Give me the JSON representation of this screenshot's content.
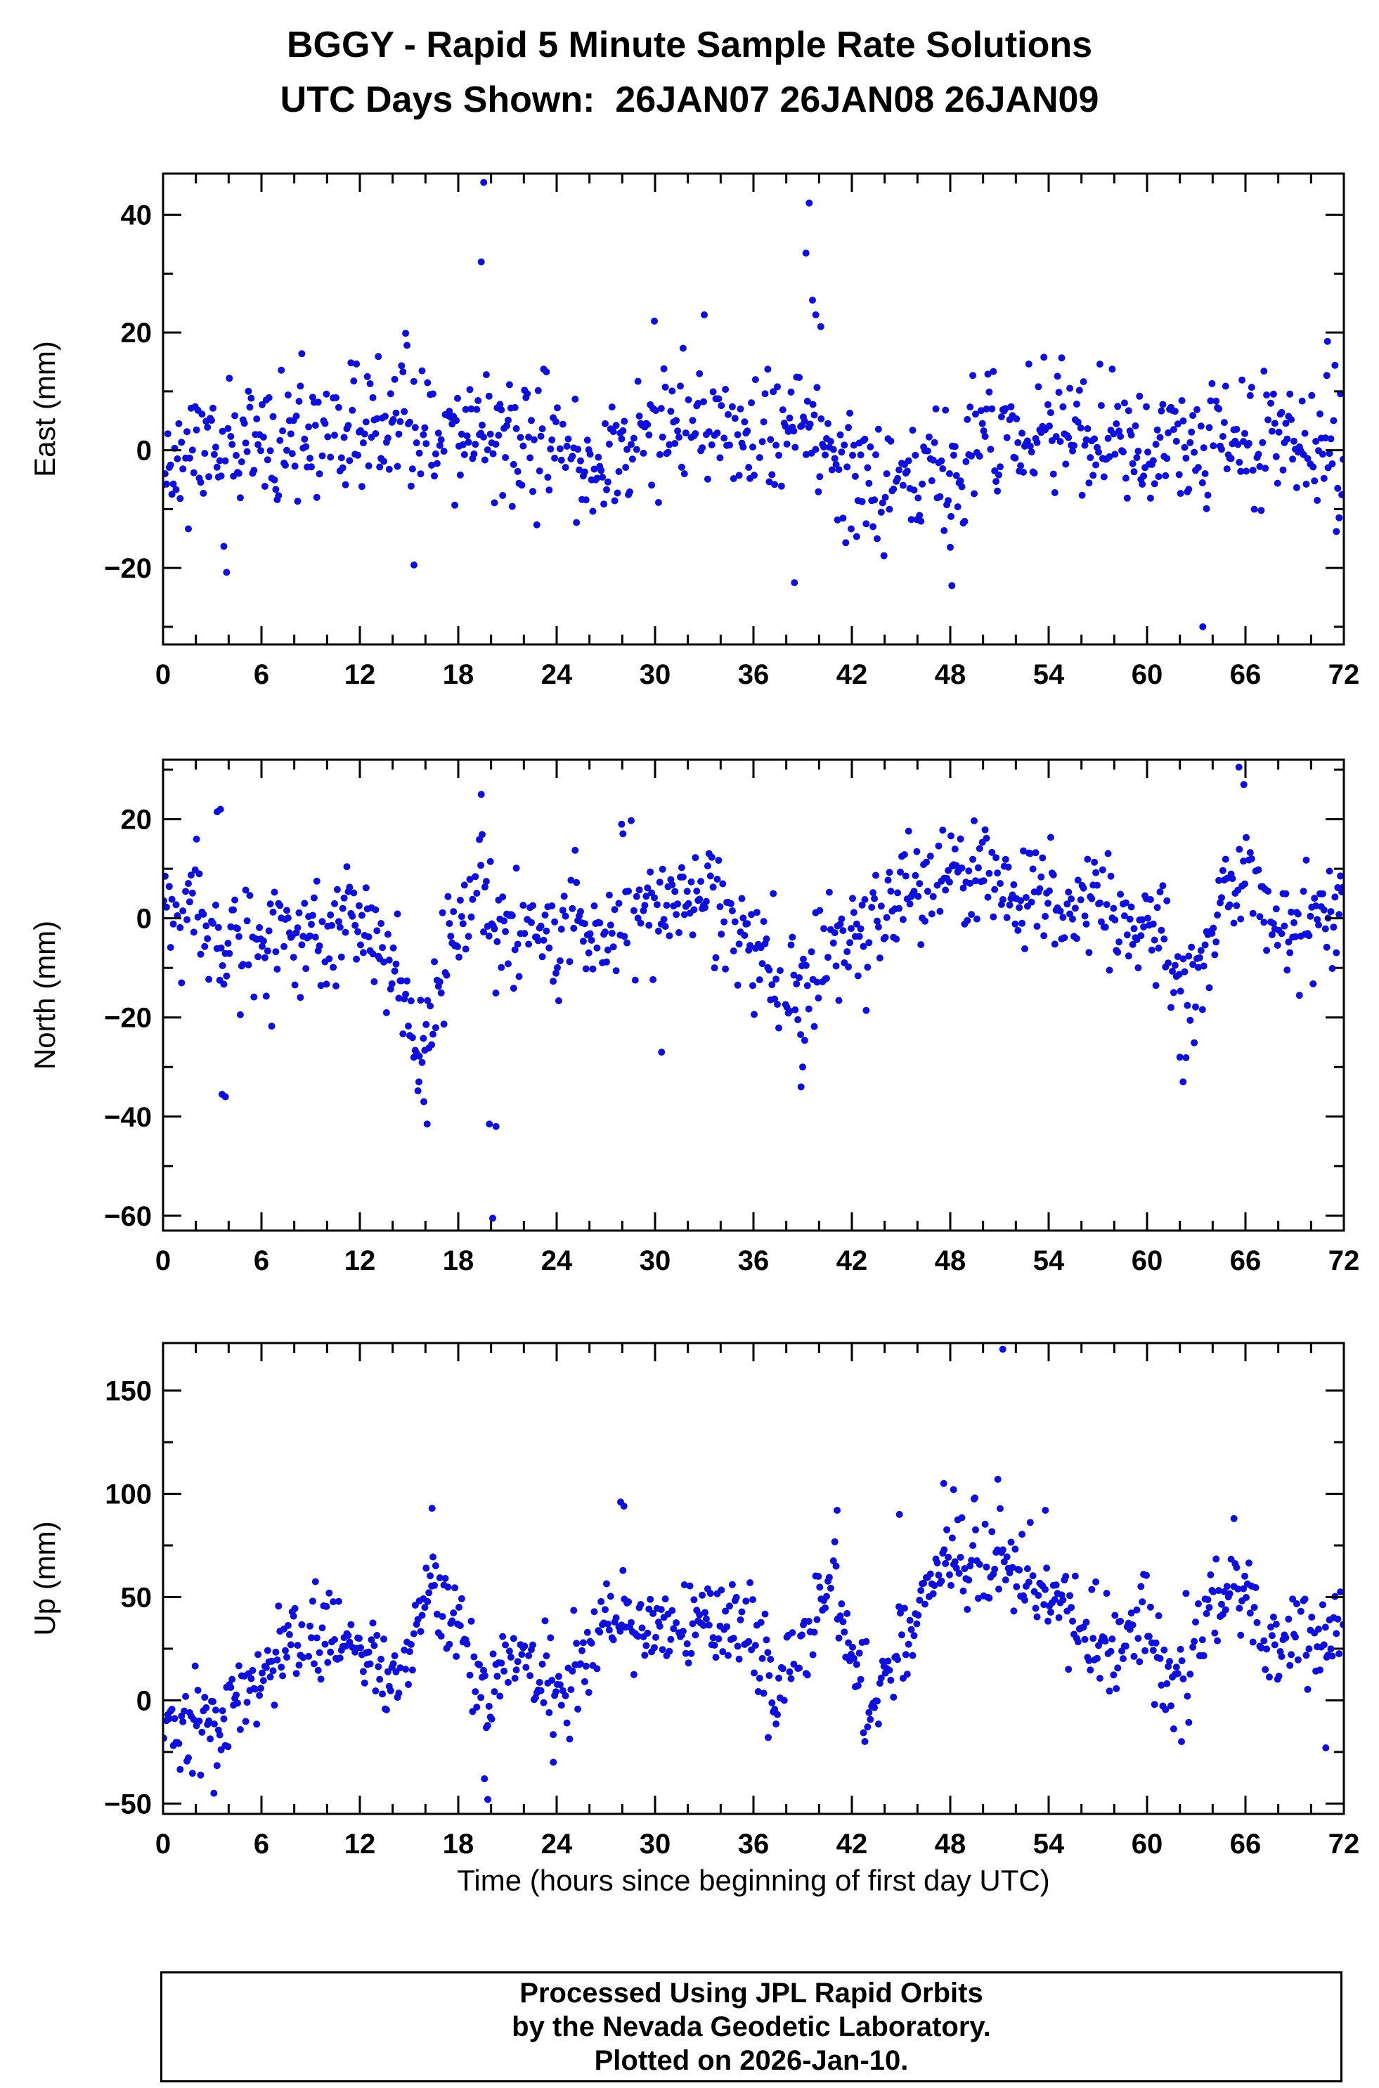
{
  "page": {
    "title": "BGGY - Rapid 5 Minute Sample Rate Solutions",
    "subtitle": "UTC Days Shown:  26JAN07 26JAN08 26JAN09",
    "footer_lines": [
      "Processed Using JPL Rapid Orbits",
      "by the Nevada Geodetic Laboratory.",
      "Plotted on 2026-Jan-10."
    ]
  },
  "style": {
    "point_color": "#0f0fdc",
    "frame_color": "#000000",
    "text_color": "#000000",
    "background": "#ffffff"
  },
  "chart_data": [
    {
      "type": "scatter",
      "ylabel": "East (mm)",
      "xlabel": "",
      "xlim": [
        0,
        72
      ],
      "xticks": [
        0,
        6,
        12,
        18,
        24,
        30,
        36,
        42,
        48,
        54,
        60,
        66,
        72
      ],
      "xtick_minor_step": 2,
      "ylim": [
        -33,
        47
      ],
      "yticks_major": [
        -20,
        0,
        20,
        40
      ],
      "ytick_minor_step": 10,
      "grid": false,
      "legend": false,
      "sample": {
        "n": 864,
        "seed": 11,
        "sigma": 5.5,
        "gap_prob": 0.05,
        "mean_curve": [
          [
            0,
            -1
          ],
          [
            3,
            0
          ],
          [
            6,
            0
          ],
          [
            9,
            2
          ],
          [
            12,
            3
          ],
          [
            15,
            4
          ],
          [
            16,
            5
          ],
          [
            18,
            3
          ],
          [
            20,
            3
          ],
          [
            22,
            1
          ],
          [
            24,
            1
          ],
          [
            26,
            -2
          ],
          [
            28,
            0
          ],
          [
            30,
            3
          ],
          [
            32,
            5
          ],
          [
            33,
            6
          ],
          [
            34,
            3
          ],
          [
            36,
            1
          ],
          [
            38,
            2
          ],
          [
            39,
            5
          ],
          [
            40,
            1
          ],
          [
            41,
            -2
          ],
          [
            42,
            -4
          ],
          [
            44,
            -4
          ],
          [
            46,
            -5
          ],
          [
            48,
            -3
          ],
          [
            50,
            2
          ],
          [
            52,
            3
          ],
          [
            54,
            6
          ],
          [
            55,
            5
          ],
          [
            56,
            2
          ],
          [
            58,
            2
          ],
          [
            60,
            0
          ],
          [
            62,
            0
          ],
          [
            64,
            1
          ],
          [
            66,
            3
          ],
          [
            68,
            2
          ],
          [
            70,
            1
          ],
          [
            72,
            3
          ]
        ]
      },
      "outliers": [
        [
          19.55,
          45.5
        ],
        [
          19.4,
          32
        ],
        [
          39.4,
          42
        ],
        [
          39.2,
          33.5
        ],
        [
          39.6,
          25.5
        ],
        [
          39.8,
          23
        ],
        [
          40.1,
          21
        ],
        [
          33.0,
          23
        ],
        [
          15.3,
          -19.5
        ],
        [
          38.5,
          -22.5
        ],
        [
          48.1,
          -23
        ],
        [
          48.0,
          -16.5
        ],
        [
          63.4,
          -30
        ],
        [
          71.0,
          18.5
        ]
      ]
    },
    {
      "type": "scatter",
      "ylabel": "North (mm)",
      "xlabel": "",
      "xlim": [
        0,
        72
      ],
      "xticks": [
        0,
        6,
        12,
        18,
        24,
        30,
        36,
        42,
        48,
        54,
        60,
        66,
        72
      ],
      "xtick_minor_step": 2,
      "ylim": [
        -63,
        32
      ],
      "yticks_major": [
        -60,
        -40,
        -20,
        0,
        20
      ],
      "ytick_minor_step": 10,
      "grid": false,
      "legend": false,
      "sample": {
        "n": 864,
        "seed": 22,
        "sigma": 5.5,
        "gap_prob": 0.05,
        "mean_curve": [
          [
            0,
            2
          ],
          [
            1,
            4
          ],
          [
            2,
            5
          ],
          [
            3,
            -2
          ],
          [
            4,
            -7
          ],
          [
            5,
            -5
          ],
          [
            6,
            -4
          ],
          [
            7,
            -3
          ],
          [
            8,
            -5
          ],
          [
            9,
            -3
          ],
          [
            10,
            -4
          ],
          [
            11,
            -2
          ],
          [
            12,
            -3
          ],
          [
            13,
            -5
          ],
          [
            14,
            -12
          ],
          [
            15,
            -18
          ],
          [
            15.7,
            -24
          ],
          [
            16.3,
            -20
          ],
          [
            17,
            -10
          ],
          [
            18,
            0
          ],
          [
            18.8,
            6
          ],
          [
            19.5,
            8
          ],
          [
            20.2,
            -4
          ],
          [
            21,
            -2
          ],
          [
            22,
            0
          ],
          [
            23,
            -2
          ],
          [
            24,
            -3
          ],
          [
            25,
            -2
          ],
          [
            26,
            -3
          ],
          [
            27,
            -1
          ],
          [
            28,
            1
          ],
          [
            29,
            0
          ],
          [
            30,
            2
          ],
          [
            31,
            3
          ],
          [
            32,
            4
          ],
          [
            33,
            5
          ],
          [
            34,
            2
          ],
          [
            35,
            -2
          ],
          [
            36,
            -5
          ],
          [
            37,
            -7
          ],
          [
            38,
            -10
          ],
          [
            38.8,
            -16
          ],
          [
            39.5,
            -12
          ],
          [
            40,
            -8
          ],
          [
            41,
            -5
          ],
          [
            42,
            -3
          ],
          [
            43,
            0
          ],
          [
            44,
            2
          ],
          [
            45,
            4
          ],
          [
            46,
            5
          ],
          [
            47,
            7
          ],
          [
            48,
            9
          ],
          [
            49,
            8
          ],
          [
            50,
            9
          ],
          [
            51,
            7
          ],
          [
            52,
            3
          ],
          [
            53,
            5
          ],
          [
            54,
            7
          ],
          [
            55,
            4
          ],
          [
            56,
            1
          ],
          [
            57,
            2
          ],
          [
            58,
            0
          ],
          [
            59,
            -1
          ],
          [
            60,
            -1
          ],
          [
            61,
            -4
          ],
          [
            61.8,
            -14
          ],
          [
            62.3,
            -18
          ],
          [
            63,
            -10
          ],
          [
            64,
            0
          ],
          [
            65,
            6
          ],
          [
            65.7,
            10
          ],
          [
            66.3,
            8
          ],
          [
            67,
            2
          ],
          [
            68,
            -3
          ],
          [
            69,
            -4
          ],
          [
            70,
            -2
          ],
          [
            71,
            0
          ],
          [
            72,
            4
          ]
        ]
      },
      "outliers": [
        [
          20.1,
          -60.5
        ],
        [
          19.9,
          -41.5
        ],
        [
          20.3,
          -42
        ],
        [
          16.1,
          -41.5
        ],
        [
          15.9,
          -37
        ],
        [
          15.6,
          -33
        ],
        [
          3.6,
          -35.5
        ],
        [
          3.8,
          -36
        ],
        [
          38.9,
          -34
        ],
        [
          39.0,
          -30
        ],
        [
          62.2,
          -33
        ],
        [
          62.0,
          -28
        ],
        [
          65.6,
          30.5
        ],
        [
          65.9,
          27
        ],
        [
          19.4,
          25
        ],
        [
          3.5,
          22
        ],
        [
          3.3,
          21.5
        ],
        [
          30.4,
          -27
        ]
      ]
    },
    {
      "type": "scatter",
      "ylabel": "Up (mm)",
      "xlabel": "Time (hours since beginning of first day UTC)",
      "xlim": [
        0,
        72
      ],
      "xticks": [
        0,
        6,
        12,
        18,
        24,
        30,
        36,
        42,
        48,
        54,
        60,
        66,
        72
      ],
      "xtick_minor_step": 2,
      "ylim": [
        -55,
        173
      ],
      "yticks_major": [
        -50,
        0,
        50,
        100,
        150
      ],
      "ytick_minor_step": 25,
      "grid": false,
      "legend": false,
      "sample": {
        "n": 864,
        "seed": 33,
        "sigma": 11,
        "gap_prob": 0.05,
        "mean_curve": [
          [
            0,
            -12
          ],
          [
            1,
            -15
          ],
          [
            2,
            -10
          ],
          [
            3,
            -12
          ],
          [
            4,
            -8
          ],
          [
            5,
            5
          ],
          [
            6,
            15
          ],
          [
            7,
            20
          ],
          [
            8,
            28
          ],
          [
            9,
            35
          ],
          [
            10,
            30
          ],
          [
            11,
            28
          ],
          [
            12,
            22
          ],
          [
            13,
            10
          ],
          [
            14,
            8
          ],
          [
            15,
            20
          ],
          [
            16,
            45
          ],
          [
            16.5,
            52
          ],
          [
            17,
            48
          ],
          [
            18,
            35
          ],
          [
            19,
            10
          ],
          [
            19.7,
            -5
          ],
          [
            20.5,
            15
          ],
          [
            21,
            20
          ],
          [
            22,
            15
          ],
          [
            23,
            5
          ],
          [
            24,
            0
          ],
          [
            25,
            10
          ],
          [
            26,
            25
          ],
          [
            27,
            38
          ],
          [
            28,
            42
          ],
          [
            29,
            35
          ],
          [
            30,
            38
          ],
          [
            31,
            30
          ],
          [
            32,
            35
          ],
          [
            33,
            38
          ],
          [
            34,
            35
          ],
          [
            35,
            38
          ],
          [
            36,
            40
          ],
          [
            36.8,
            20
          ],
          [
            37.5,
            5
          ],
          [
            38,
            10
          ],
          [
            39,
            30
          ],
          [
            40,
            45
          ],
          [
            40.8,
            55
          ],
          [
            41.5,
            40
          ],
          [
            42,
            25
          ],
          [
            42.8,
            5
          ],
          [
            43.5,
            -5
          ],
          [
            44,
            10
          ],
          [
            45,
            25
          ],
          [
            46,
            40
          ],
          [
            47,
            60
          ],
          [
            48,
            70
          ],
          [
            49,
            60
          ],
          [
            50,
            65
          ],
          [
            51,
            70
          ],
          [
            52,
            60
          ],
          [
            53,
            55
          ],
          [
            54,
            55
          ],
          [
            55,
            45
          ],
          [
            56,
            35
          ],
          [
            57,
            30
          ],
          [
            58,
            28
          ],
          [
            59,
            30
          ],
          [
            60,
            38
          ],
          [
            60.8,
            20
          ],
          [
            61.5,
            5
          ],
          [
            62,
            15
          ],
          [
            63,
            30
          ],
          [
            64,
            45
          ],
          [
            65,
            55
          ],
          [
            65.8,
            58
          ],
          [
            66.5,
            45
          ],
          [
            67,
            30
          ],
          [
            68,
            28
          ],
          [
            69,
            32
          ],
          [
            70,
            30
          ],
          [
            71,
            35
          ],
          [
            72,
            40
          ]
        ]
      },
      "outliers": [
        [
          51.2,
          170
        ],
        [
          47.6,
          105
        ],
        [
          48.2,
          102
        ],
        [
          50.9,
          107
        ],
        [
          49.5,
          98
        ],
        [
          53.8,
          92
        ],
        [
          27.9,
          96
        ],
        [
          28.1,
          94
        ],
        [
          16.4,
          93
        ],
        [
          41.1,
          92
        ],
        [
          44.9,
          90
        ],
        [
          65.3,
          88
        ],
        [
          19.8,
          -48
        ],
        [
          3.1,
          -45
        ],
        [
          19.6,
          -38
        ],
        [
          23.8,
          -30
        ],
        [
          70.9,
          -23
        ],
        [
          62.1,
          -20
        ],
        [
          36.9,
          -18
        ]
      ]
    }
  ]
}
